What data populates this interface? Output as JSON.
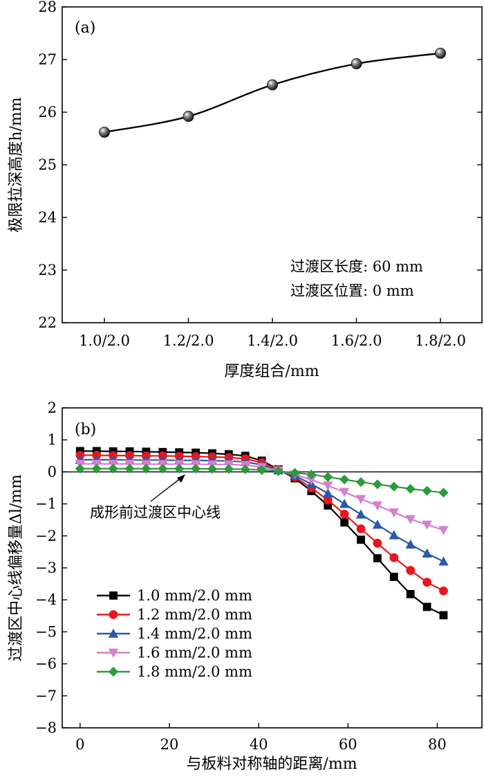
{
  "chart_data": [
    {
      "type": "line",
      "panel_label": "(a)",
      "categories": [
        "1.0/2.0",
        "1.2/2.0",
        "1.4/2.0",
        "1.6/2.0",
        "1.8/2.0"
      ],
      "values": [
        25.62,
        25.92,
        26.52,
        26.92,
        27.12
      ],
      "xlabel": "厚度组合/mm",
      "ylabel": "极限拉深高度h/mm",
      "ylim": [
        22,
        28
      ],
      "yticks": [
        "22",
        "23",
        "24",
        "25",
        "26",
        "27",
        "28"
      ],
      "notes": [
        "过渡区长度: 60 mm",
        "过渡区位置: 0 mm"
      ],
      "line_color": "#000000",
      "marker": "sphere"
    },
    {
      "type": "line",
      "panel_label": "(b)",
      "xlabel": "与板料对称轴的距离/mm",
      "ylabel": "过渡区中心线偏移量Δl/mm",
      "xlim": [
        -4,
        90
      ],
      "ylim": [
        -8,
        2
      ],
      "xticks": [
        "0",
        "20",
        "40",
        "60",
        "80"
      ],
      "yticks": [
        "2",
        "1",
        "0",
        "−1",
        "−2",
        "−3",
        "−4",
        "−5",
        "−6",
        "−7",
        "−8"
      ],
      "reference_line_y": 0,
      "annotation": "成形前过渡区中心线",
      "legend_position": "lower-left",
      "x": [
        0,
        3.7,
        7.4,
        11.1,
        14.8,
        18.5,
        22.2,
        25.9,
        29.6,
        33.3,
        37,
        40.7,
        44.4,
        48.1,
        51.8,
        55.5,
        59.2,
        62.9,
        66.6,
        70.3,
        74,
        77.7,
        81.4
      ],
      "series": [
        {
          "name": "1.0 mm/2.0 mm",
          "color": "#000000",
          "marker": "square",
          "values": [
            0.65,
            0.65,
            0.64,
            0.64,
            0.63,
            0.62,
            0.61,
            0.6,
            0.58,
            0.55,
            0.5,
            0.35,
            0.08,
            -0.2,
            -0.6,
            -1.05,
            -1.58,
            -2.12,
            -2.7,
            -3.28,
            -3.82,
            -4.22,
            -4.48
          ]
        },
        {
          "name": "1.2 mm/2.0 mm",
          "color": "#e8161e",
          "marker": "circle",
          "values": [
            0.52,
            0.52,
            0.51,
            0.51,
            0.5,
            0.5,
            0.49,
            0.48,
            0.47,
            0.45,
            0.41,
            0.29,
            0.07,
            -0.16,
            -0.5,
            -0.88,
            -1.32,
            -1.78,
            -2.23,
            -2.68,
            -3.08,
            -3.45,
            -3.72
          ]
        },
        {
          "name": "1.4 mm/2.0 mm",
          "color": "#2b5aa8",
          "marker": "triangle-up",
          "values": [
            0.38,
            0.38,
            0.38,
            0.37,
            0.37,
            0.37,
            0.36,
            0.36,
            0.35,
            0.34,
            0.31,
            0.22,
            0.05,
            -0.12,
            -0.38,
            -0.67,
            -1.0,
            -1.33,
            -1.65,
            -1.98,
            -2.27,
            -2.55,
            -2.8
          ]
        },
        {
          "name": "1.6 mm/2.0 mm",
          "color": "#d67fcd",
          "marker": "triangle-down",
          "values": [
            0.25,
            0.25,
            0.25,
            0.25,
            0.24,
            0.24,
            0.24,
            0.24,
            0.23,
            0.23,
            0.21,
            0.15,
            0.04,
            -0.08,
            -0.25,
            -0.43,
            -0.63,
            -0.85,
            -1.05,
            -1.27,
            -1.48,
            -1.65,
            -1.82
          ]
        },
        {
          "name": "1.8 mm/2.0 mm",
          "color": "#2a9c3c",
          "marker": "diamond",
          "values": [
            0.1,
            0.1,
            0.1,
            0.1,
            0.1,
            0.1,
            0.1,
            0.1,
            0.09,
            0.09,
            0.08,
            0.06,
            0.02,
            -0.03,
            -0.08,
            -0.16,
            -0.24,
            -0.32,
            -0.39,
            -0.46,
            -0.53,
            -0.59,
            -0.65
          ]
        }
      ]
    }
  ]
}
